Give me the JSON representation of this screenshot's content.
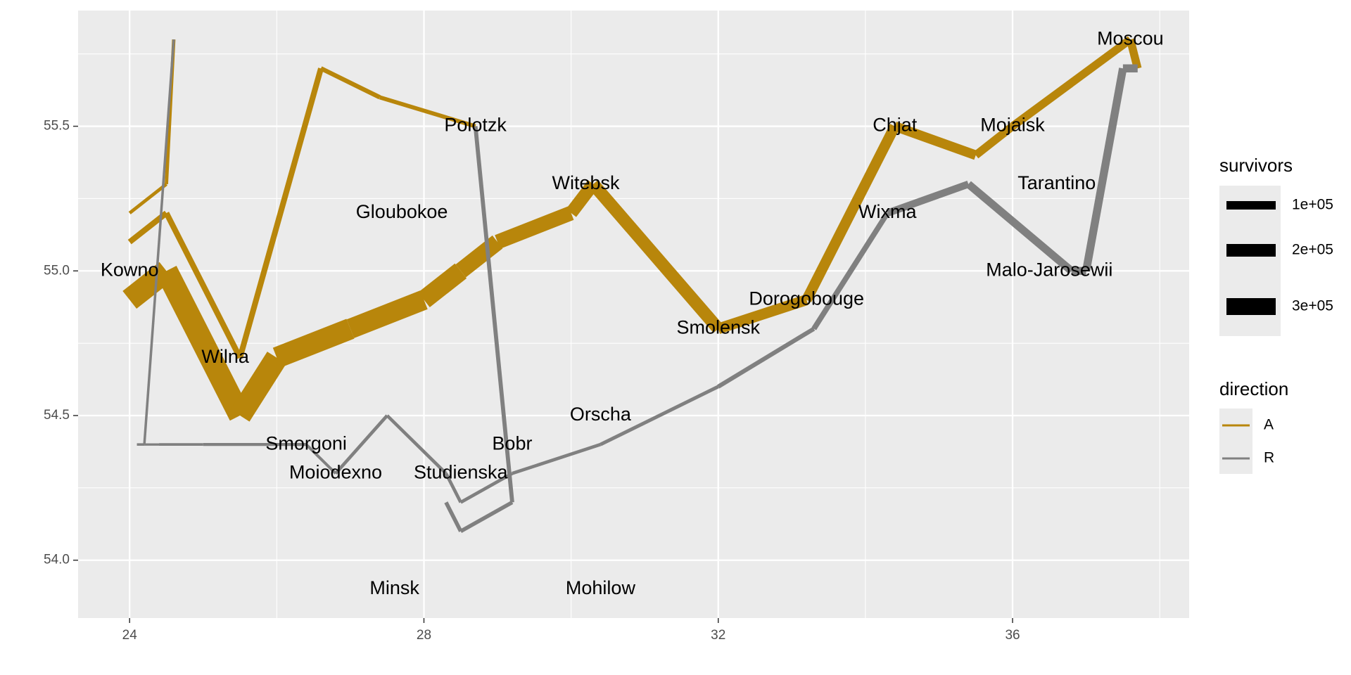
{
  "chart_data": {
    "type": "line",
    "title": "",
    "xlabel": "",
    "ylabel": "",
    "xlim": [
      23.3,
      38.4
    ],
    "ylim": [
      53.8,
      55.9
    ],
    "x_ticks": [
      24,
      28,
      32,
      36
    ],
    "x_tick_labels": [
      "24",
      "28",
      "32",
      "36"
    ],
    "y_ticks": [
      54.0,
      54.5,
      55.0,
      55.5
    ],
    "y_tick_labels": [
      "54.0",
      "54.5",
      "55.0",
      "55.5"
    ],
    "grid": true,
    "colors": {
      "panel": "#ebebeb",
      "grid": "#ffffff",
      "A": "#b8860b",
      "R": "#808080"
    },
    "legend": {
      "placement": "right",
      "survivors": {
        "title": "survivors",
        "entries": [
          {
            "label": "1e+05",
            "value": 100000
          },
          {
            "label": "2e+05",
            "value": 200000
          },
          {
            "label": "3e+05",
            "value": 300000
          }
        ]
      },
      "direction": {
        "title": "direction",
        "entries": [
          {
            "label": "A",
            "color": "#b8860b"
          },
          {
            "label": "R",
            "color": "#808080"
          }
        ]
      }
    },
    "cities": [
      {
        "name": "Kowno",
        "lon": 24.0,
        "lat": 55.0
      },
      {
        "name": "Wilna",
        "lon": 25.3,
        "lat": 54.7
      },
      {
        "name": "Smorgoni",
        "lon": 26.4,
        "lat": 54.4
      },
      {
        "name": "Moiodexno",
        "lon": 26.8,
        "lat": 54.3
      },
      {
        "name": "Gloubokoe",
        "lon": 27.7,
        "lat": 55.2
      },
      {
        "name": "Minsk",
        "lon": 27.6,
        "lat": 53.9
      },
      {
        "name": "Studienska",
        "lon": 28.5,
        "lat": 54.3
      },
      {
        "name": "Polotzk",
        "lon": 28.7,
        "lat": 55.5
      },
      {
        "name": "Bobr",
        "lon": 29.2,
        "lat": 54.4
      },
      {
        "name": "Witebsk",
        "lon": 30.2,
        "lat": 55.3
      },
      {
        "name": "Orscha",
        "lon": 30.4,
        "lat": 54.5
      },
      {
        "name": "Mohilow",
        "lon": 30.4,
        "lat": 53.9
      },
      {
        "name": "Smolensk",
        "lon": 32.0,
        "lat": 54.8
      },
      {
        "name": "Dorogobouge",
        "lon": 33.2,
        "lat": 54.9
      },
      {
        "name": "Wixma",
        "lon": 34.3,
        "lat": 55.2
      },
      {
        "name": "Chjat",
        "lon": 34.4,
        "lat": 55.5
      },
      {
        "name": "Mojaisk",
        "lon": 36.0,
        "lat": 55.5
      },
      {
        "name": "Moscou",
        "lon": 37.6,
        "lat": 55.8
      },
      {
        "name": "Tarantino",
        "lon": 36.6,
        "lat": 55.3
      },
      {
        "name": "Malo-Jarosewii",
        "lon": 36.5,
        "lat": 55.0
      }
    ],
    "troops": [
      {
        "lon": 24.0,
        "lat": 54.9,
        "survivors": 340000,
        "direction": "A",
        "group": 1
      },
      {
        "lon": 24.5,
        "lat": 55.0,
        "survivors": 340000,
        "direction": "A",
        "group": 1
      },
      {
        "lon": 25.5,
        "lat": 54.5,
        "survivors": 340000,
        "direction": "A",
        "group": 1
      },
      {
        "lon": 26.0,
        "lat": 54.7,
        "survivors": 320000,
        "direction": "A",
        "group": 1
      },
      {
        "lon": 27.0,
        "lat": 54.8,
        "survivors": 300000,
        "direction": "A",
        "group": 1
      },
      {
        "lon": 28.0,
        "lat": 54.9,
        "survivors": 280000,
        "direction": "A",
        "group": 1
      },
      {
        "lon": 28.5,
        "lat": 55.0,
        "survivors": 240000,
        "direction": "A",
        "group": 1
      },
      {
        "lon": 29.0,
        "lat": 55.1,
        "survivors": 210000,
        "direction": "A",
        "group": 1
      },
      {
        "lon": 30.0,
        "lat": 55.2,
        "survivors": 180000,
        "direction": "A",
        "group": 1
      },
      {
        "lon": 30.3,
        "lat": 55.3,
        "survivors": 175000,
        "direction": "A",
        "group": 1
      },
      {
        "lon": 32.0,
        "lat": 54.8,
        "survivors": 145000,
        "direction": "A",
        "group": 1
      },
      {
        "lon": 33.2,
        "lat": 54.9,
        "survivors": 140000,
        "direction": "A",
        "group": 1
      },
      {
        "lon": 34.4,
        "lat": 55.5,
        "survivors": 127100,
        "direction": "A",
        "group": 1
      },
      {
        "lon": 35.5,
        "lat": 55.4,
        "survivors": 100000,
        "direction": "A",
        "group": 1
      },
      {
        "lon": 36.0,
        "lat": 55.5,
        "survivors": 100000,
        "direction": "A",
        "group": 1
      },
      {
        "lon": 37.6,
        "lat": 55.8,
        "survivors": 100000,
        "direction": "A",
        "group": 1
      },
      {
        "lon": 37.7,
        "lat": 55.7,
        "survivors": 100000,
        "direction": "R",
        "group": 1
      },
      {
        "lon": 37.5,
        "lat": 55.7,
        "survivors": 98000,
        "direction": "R",
        "group": 1
      },
      {
        "lon": 37.0,
        "lat": 55.0,
        "survivors": 97000,
        "direction": "R",
        "group": 1
      },
      {
        "lon": 36.8,
        "lat": 55.0,
        "survivors": 96000,
        "direction": "R",
        "group": 1
      },
      {
        "lon": 35.4,
        "lat": 55.3,
        "survivors": 87000,
        "direction": "R",
        "group": 1
      },
      {
        "lon": 34.3,
        "lat": 55.2,
        "survivors": 55000,
        "direction": "R",
        "group": 1
      },
      {
        "lon": 33.3,
        "lat": 54.8,
        "survivors": 37000,
        "direction": "R",
        "group": 1
      },
      {
        "lon": 32.0,
        "lat": 54.6,
        "survivors": 24000,
        "direction": "R",
        "group": 1
      },
      {
        "lon": 30.4,
        "lat": 54.4,
        "survivors": 20000,
        "direction": "R",
        "group": 1
      },
      {
        "lon": 29.2,
        "lat": 54.3,
        "survivors": 20000,
        "direction": "R",
        "group": 1
      },
      {
        "lon": 28.5,
        "lat": 54.2,
        "survivors": 20000,
        "direction": "R",
        "group": 1
      },
      {
        "lon": 28.3,
        "lat": 54.3,
        "survivors": 20000,
        "direction": "R",
        "group": 1
      },
      {
        "lon": 27.5,
        "lat": 54.5,
        "survivors": 20000,
        "direction": "R",
        "group": 1
      },
      {
        "lon": 26.8,
        "lat": 54.3,
        "survivors": 12000,
        "direction": "R",
        "group": 1
      },
      {
        "lon": 26.4,
        "lat": 54.4,
        "survivors": 14000,
        "direction": "R",
        "group": 1
      },
      {
        "lon": 25.0,
        "lat": 54.4,
        "survivors": 8000,
        "direction": "R",
        "group": 1
      },
      {
        "lon": 24.4,
        "lat": 54.4,
        "survivors": 4000,
        "direction": "R",
        "group": 1
      },
      {
        "lon": 24.2,
        "lat": 54.4,
        "survivors": 4000,
        "direction": "R",
        "group": 1
      },
      {
        "lon": 24.1,
        "lat": 54.4,
        "survivors": 4000,
        "direction": "R",
        "group": 1
      },
      {
        "lon": 24.0,
        "lat": 55.1,
        "survivors": 60000,
        "direction": "A",
        "group": 2
      },
      {
        "lon": 24.5,
        "lat": 55.2,
        "survivors": 60000,
        "direction": "A",
        "group": 2
      },
      {
        "lon": 25.5,
        "lat": 54.7,
        "survivors": 60000,
        "direction": "A",
        "group": 2
      },
      {
        "lon": 26.6,
        "lat": 55.7,
        "survivors": 40000,
        "direction": "A",
        "group": 2
      },
      {
        "lon": 27.4,
        "lat": 55.6,
        "survivors": 33000,
        "direction": "A",
        "group": 2
      },
      {
        "lon": 28.7,
        "lat": 55.5,
        "survivors": 33000,
        "direction": "R",
        "group": 2
      },
      {
        "lon": 29.2,
        "lat": 54.2,
        "survivors": 30000,
        "direction": "R",
        "group": 2
      },
      {
        "lon": 28.5,
        "lat": 54.1,
        "survivors": 30000,
        "direction": "R",
        "group": 2
      },
      {
        "lon": 28.3,
        "lat": 54.2,
        "survivors": 28000,
        "direction": "R",
        "group": 2
      },
      {
        "lon": 24.0,
        "lat": 55.2,
        "survivors": 22000,
        "direction": "A",
        "group": 3
      },
      {
        "lon": 24.5,
        "lat": 55.3,
        "survivors": 22000,
        "direction": "A",
        "group": 3
      },
      {
        "lon": 24.6,
        "lat": 55.8,
        "survivors": 6000,
        "direction": "A",
        "group": 3
      },
      {
        "lon": 24.6,
        "lat": 55.8,
        "survivors": 6000,
        "direction": "R",
        "group": 3
      },
      {
        "lon": 24.2,
        "lat": 54.4,
        "survivors": 6000,
        "direction": "R",
        "group": 3
      },
      {
        "lon": 24.1,
        "lat": 54.4,
        "survivors": 6000,
        "direction": "R",
        "group": 3
      }
    ]
  }
}
